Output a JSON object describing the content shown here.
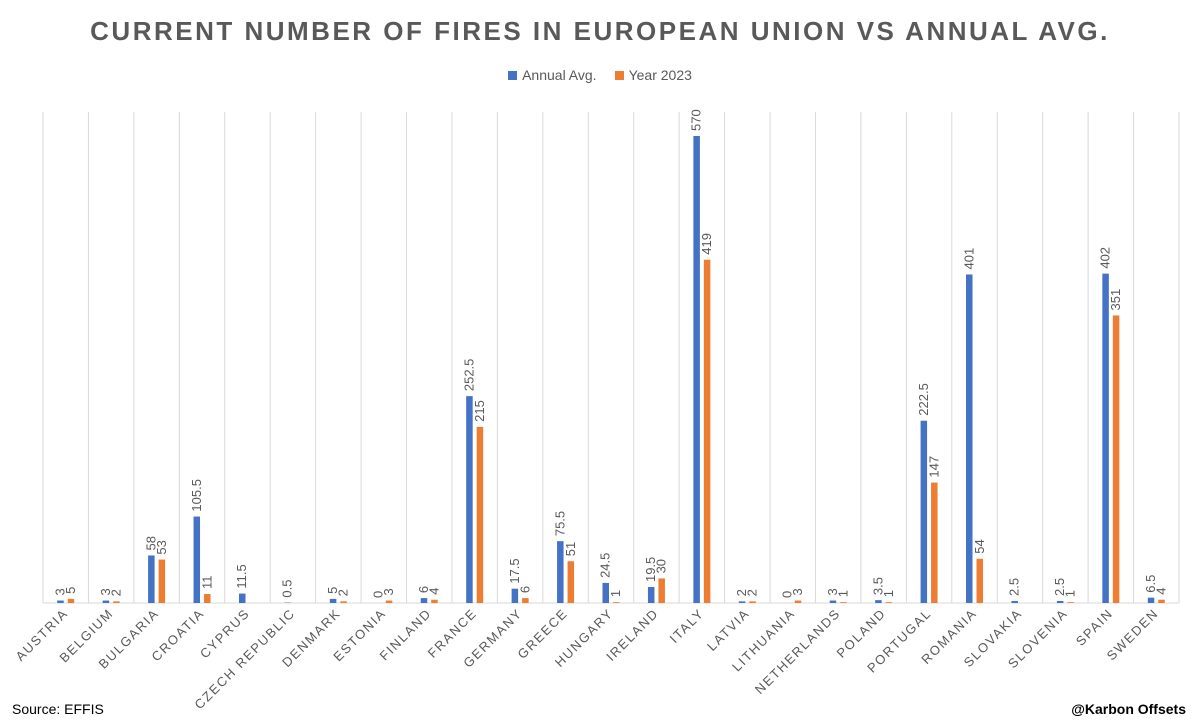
{
  "chart_data": {
    "type": "bar",
    "title": "CURRENT NUMBER OF FIRES IN EUROPEAN UNION VS ANNUAL AVG.",
    "xlabel": "",
    "ylabel": "",
    "ylim": [
      0,
      600
    ],
    "grid": "vertical category separators",
    "legend_position": "top",
    "categories": [
      "AUSTRIA",
      "BELGIUM",
      "BULGARIA",
      "CROATIA",
      "CYPRUS",
      "CZECH REPUBLIC",
      "DENMARK",
      "ESTONIA",
      "FINLAND",
      "FRANCE",
      "GERMANY",
      "GREECE",
      "HUNGARY",
      "IRELAND",
      "ITALY",
      "LATVIA",
      "LITHUANIA",
      "NETHERLANDS",
      "POLAND",
      "PORTUGAL",
      "ROMANIA",
      "SLOVAKIA",
      "SLOVENIA",
      "SPAIN",
      "SWEDEN"
    ],
    "series": [
      {
        "name": "Annual Avg.",
        "color": "#4472C4",
        "values": [
          3,
          3,
          58,
          105.5,
          11.5,
          0.5,
          5,
          0,
          6,
          252.5,
          17.5,
          75.5,
          24.5,
          19.5,
          570,
          2,
          0,
          3,
          3.5,
          222.5,
          401,
          2.5,
          2.5,
          402,
          6.5
        ]
      },
      {
        "name": "Year 2023",
        "color": "#ED7D31",
        "values": [
          5,
          2,
          53,
          11,
          null,
          null,
          2,
          3,
          4,
          215,
          6,
          51,
          1,
          30,
          419,
          2,
          3,
          1,
          1,
          147,
          54,
          null,
          1,
          351,
          4
        ]
      }
    ]
  },
  "footer": {
    "source": "Source: EFFIS",
    "credit": "@Karbon Offsets"
  },
  "colors": {
    "title": "#595959",
    "label": "#595959",
    "grid": "#D9D9D9"
  }
}
